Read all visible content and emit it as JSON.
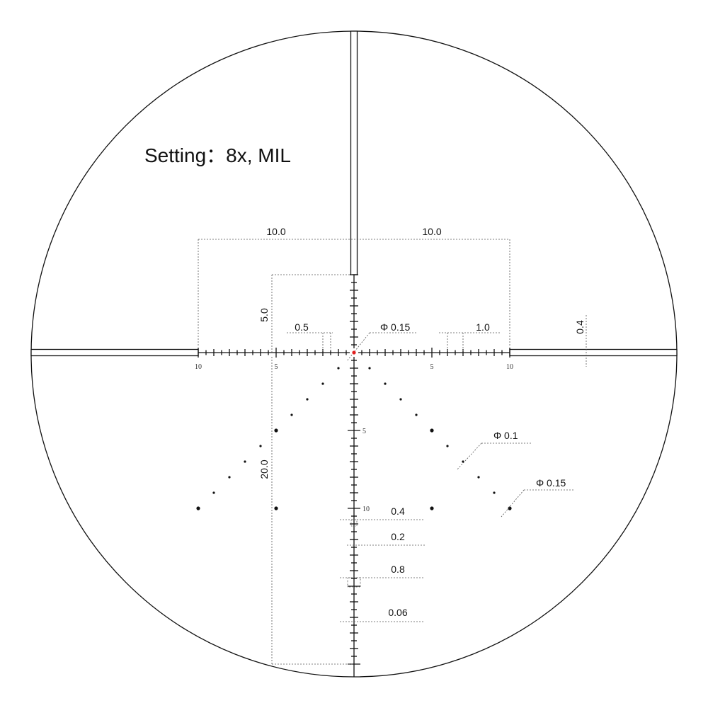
{
  "title": "Setting：8x, MIL",
  "dimensions": {
    "left_span": "10.0",
    "right_span": "10.0",
    "upper_post_gap": "5.0",
    "lower_span": "20.0",
    "half_mil_tick": "0.5",
    "mil_tick": "1.0",
    "center_dot": "Φ 0.15",
    "post_thickness": "0.4",
    "small_dot": "Φ 0.1",
    "large_dot": "Φ 0.15",
    "vertical_long_tick": "0.4",
    "vertical_short_tick": "0.2",
    "vertical_bar": "0.8",
    "line_width": "0.06"
  },
  "scale_labels": {
    "h_left_10": "10",
    "h_left_5": "5",
    "h_right_5": "5",
    "h_right_10": "10",
    "v_5": "5",
    "v_10": "10"
  },
  "reticle": {
    "magnification": "8x",
    "unit": "MIL",
    "horizontal_extent_mil": 10,
    "vertical_upper_extent_mil": 5,
    "vertical_lower_extent_mil": 20,
    "tick_spacing_mil": 0.5,
    "holdover_dots_mil": [
      [
        1,
        1
      ],
      [
        2,
        2
      ],
      [
        3,
        3
      ],
      [
        4,
        4
      ],
      [
        5,
        5
      ],
      [
        6,
        6
      ],
      [
        7,
        7
      ],
      [
        8,
        8
      ],
      [
        9,
        9
      ],
      [
        10,
        10
      ],
      [
        5,
        10
      ]
    ],
    "large_dots_mil": [
      [
        5,
        5
      ],
      [
        10,
        10
      ],
      [
        5,
        10
      ]
    ]
  },
  "colors": {
    "line": "#111111",
    "center_dot": "#e02020",
    "dim": "#555555"
  }
}
